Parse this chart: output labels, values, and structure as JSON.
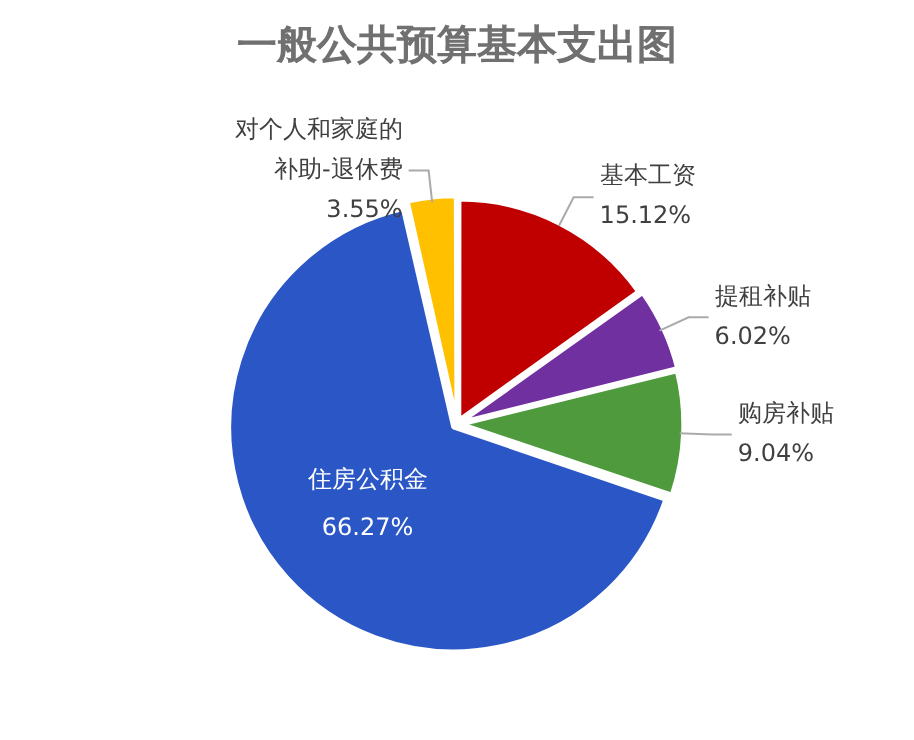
{
  "chart_data": {
    "type": "pie",
    "title": "一般公共预算基本支出图",
    "categories": [
      "基本工资",
      "提租补贴",
      "购房补贴",
      "住房公积金",
      "对个人和家庭的补助-退休费"
    ],
    "values": [
      15.12,
      6.02,
      9.04,
      66.27,
      3.55
    ],
    "colors": [
      "#c00000",
      "#7030a0",
      "#4e9a3c",
      "#2a56c6",
      "#ffc000"
    ],
    "value_labels": [
      "15.12%",
      "6.02%",
      "9.04%",
      "66.27%",
      "3.55%"
    ],
    "legend": false
  }
}
